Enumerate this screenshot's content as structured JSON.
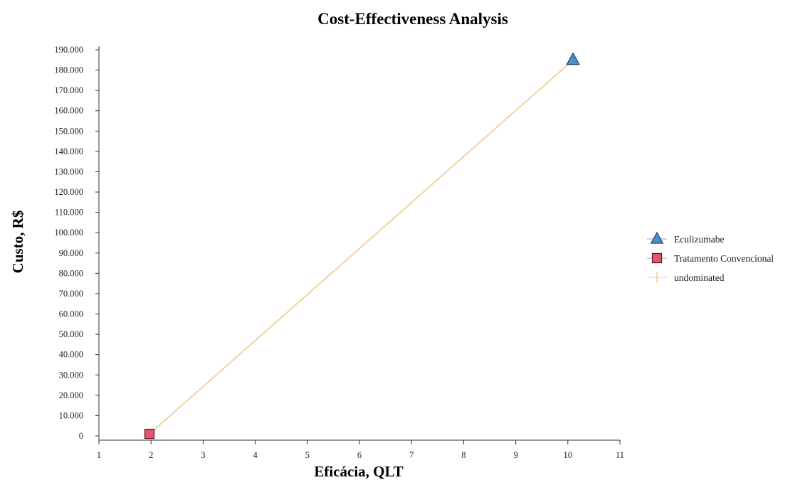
{
  "chart_data": {
    "type": "scatter",
    "title": "Cost-Effectiveness Analysis",
    "xlabel": "Eficácia, QLT",
    "ylabel": "Custo, R$",
    "xlim": [
      1,
      11
    ],
    "ylim": [
      0,
      190000
    ],
    "x_ticks": [
      "1",
      "2",
      "3",
      "4",
      "5",
      "6",
      "7",
      "8",
      "9",
      "10",
      "11"
    ],
    "y_ticks": [
      "0",
      "10.000",
      "20.000",
      "30.000",
      "40.000",
      "50.000",
      "60.000",
      "70.000",
      "80.000",
      "90.000",
      "100.000",
      "110.000",
      "120.000",
      "130.000",
      "140.000",
      "150.000",
      "160.000",
      "170.000",
      "180.000",
      "190.000"
    ],
    "grid": false,
    "legend_position": "right",
    "series": [
      {
        "name": "Eculizumabe",
        "marker": "triangle",
        "color": "#4f8fc8",
        "points": [
          {
            "x": 10.1,
            "y": 185000
          }
        ]
      },
      {
        "name": "Tratamento Convencional",
        "marker": "square",
        "color": "#e8546a",
        "points": [
          {
            "x": 1.97,
            "y": 1000
          }
        ]
      },
      {
        "name": "undominated",
        "marker": "line",
        "color": "#f0c88a",
        "points": [
          {
            "x": 1.97,
            "y": 1000
          },
          {
            "x": 10.1,
            "y": 185000
          }
        ]
      }
    ]
  }
}
